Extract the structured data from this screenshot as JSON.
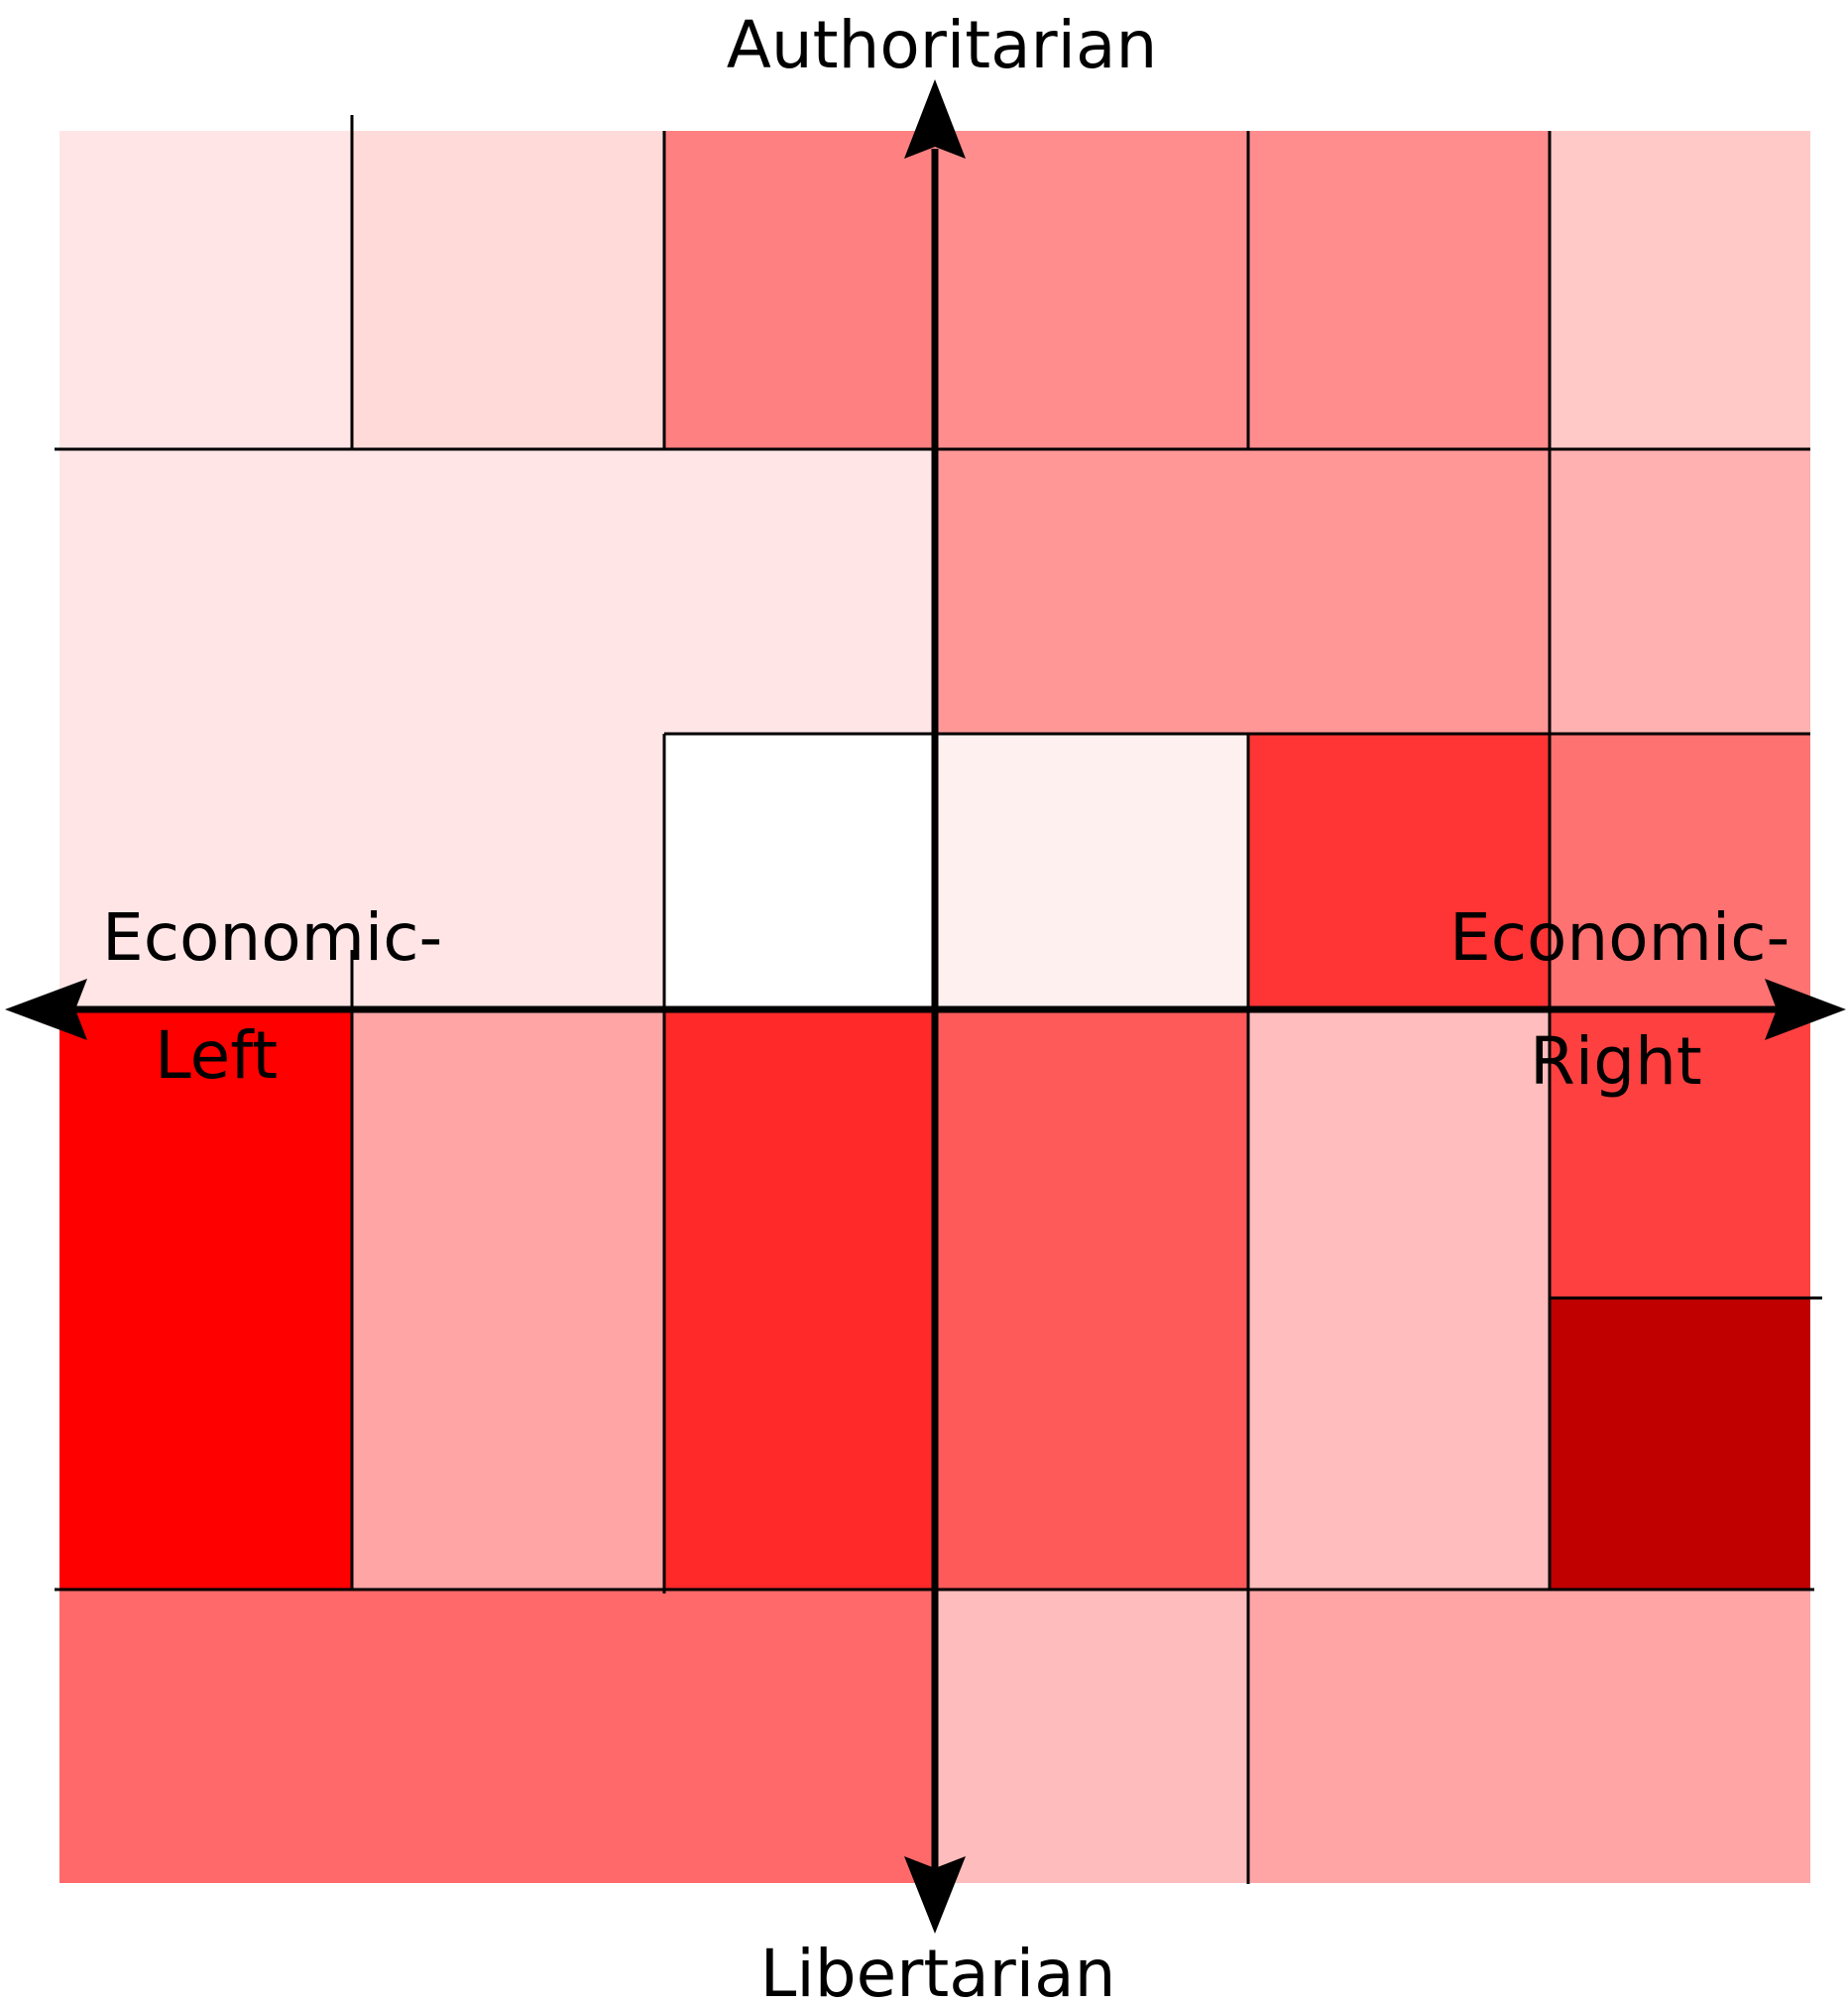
{
  "labels": {
    "top": "Authoritarian",
    "bottom": "Libertarian",
    "left_line1": "Economic-",
    "left_line2": "Left",
    "right_line1": "Economic-",
    "right_line2": "Right"
  },
  "colors": {
    "background": "#ffffff",
    "grid_line": "#000000",
    "axis": "#000000"
  },
  "cells": [
    {
      "name": "cell-r1-c1",
      "color": "#ffe5e6"
    },
    {
      "name": "cell-r1-c2",
      "color": "#ffdad9"
    },
    {
      "name": "cell-r1-c3",
      "color": "#ff8080"
    },
    {
      "name": "cell-r1-c4",
      "color": "#ff8d8d"
    },
    {
      "name": "cell-r1-c5",
      "color": "#ff8d8d"
    },
    {
      "name": "cell-r1-c6",
      "color": "#ffc9c8"
    },
    {
      "name": "cell-r2-c1-c3",
      "color": "#ffe5e6"
    },
    {
      "name": "cell-r2-c4-c5",
      "color": "#ff9797"
    },
    {
      "name": "cell-r2-c6",
      "color": "#ffb1b1"
    },
    {
      "name": "cell-r3-c1-c2",
      "color": "#ffe5e6"
    },
    {
      "name": "cell-r3-c3",
      "color": "#ffffff"
    },
    {
      "name": "cell-r3-c4",
      "color": "#fff0f0"
    },
    {
      "name": "cell-r3-c5",
      "color": "#ff3535"
    },
    {
      "name": "cell-r3-c6",
      "color": "#ff7272"
    },
    {
      "name": "cell-r4-c1",
      "color": "#ff0000"
    },
    {
      "name": "cell-r4-c2",
      "color": "#ffa5a6"
    },
    {
      "name": "cell-r4-c3",
      "color": "#ff2929"
    },
    {
      "name": "cell-r4-c4",
      "color": "#ff5a5a"
    },
    {
      "name": "cell-r4-c5",
      "color": "#ffbdbd"
    },
    {
      "name": "cell-r4-c6-upper",
      "color": "#ff4040"
    },
    {
      "name": "cell-r4-c6-lower",
      "color": "#c00000"
    },
    {
      "name": "cell-r5-c1-c3",
      "color": "#ff6969"
    },
    {
      "name": "cell-r5-c4",
      "color": "#ffbcbc"
    },
    {
      "name": "cell-r5-c5-c6",
      "color": "#ffa5a5"
    }
  ]
}
